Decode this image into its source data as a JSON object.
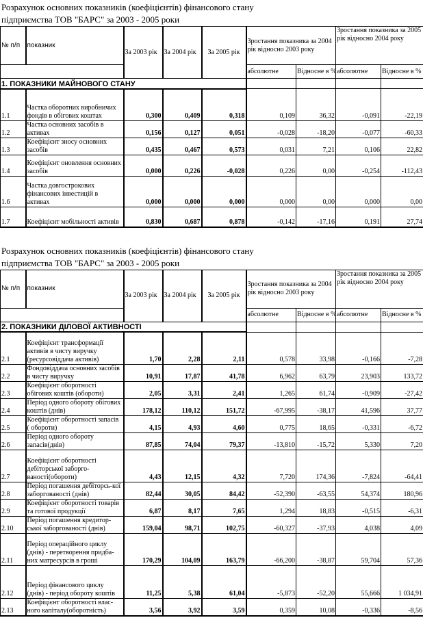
{
  "tables": [
    {
      "title_line1": "Розрахунок основних показників (коефіцієнтів) фінансового стану",
      "title_line2": "підприємства ТОВ \"БАРС\" за 2003 - 2005 роки",
      "headers": {
        "num": "№ п/п",
        "indicator": "показник",
        "y2003": "За 2003 рік",
        "y2004": "За 2004 рік",
        "y2005": "За 2005 рік",
        "growth1": "Зростання показника за 2004 рік відносно 2003 року",
        "growth2": "Зростання показника за 2005 рік відносно 2004 року",
        "abs1": "абсолютне",
        "rel1": "Відносне в %",
        "abs2": "абсолютне",
        "rel2": "Відносне в %"
      },
      "section": "1. ПОКАЗНИКИ МАЙНОВОГО СТАНУ",
      "rows": [
        {
          "num": "1.1",
          "name": "Частка оборотних виробничих фондів в обігових коштах",
          "y2003": "0,300",
          "y2004": "0,409",
          "y2005": "0,318",
          "abs1": "0,109",
          "rel1": "36,32",
          "abs2": "-0,091",
          "rel2": "-22,19"
        },
        {
          "num": "1.2",
          "name": "Частка основних засобів в активах",
          "y2003": "0,156",
          "y2004": "0,127",
          "y2005": "0,051",
          "abs1": "-0,028",
          "rel1": "-18,20",
          "abs2": "-0,077",
          "rel2": "-60,33"
        },
        {
          "num": "1.3",
          "name": "Коефіцієнт зносу основних засобів",
          "y2003": "0,435",
          "y2004": "0,467",
          "y2005": "0,573",
          "abs1": "0,031",
          "rel1": "7,21",
          "abs2": "0,106",
          "rel2": "22,82"
        },
        {
          "num": "1.4",
          "name": "Коефіцієнт оновлення основних засобів",
          "y2003": "0,000",
          "y2004": "0,226",
          "y2005": "-0,028",
          "abs1": "0,226",
          "rel1": "0,00",
          "abs2": "-0,254",
          "rel2": "-112,43"
        },
        {
          "num": "1.6",
          "name": "Частка довгострокових фінансових інвестицій в активах",
          "y2003": "0,000",
          "y2004": "0,000",
          "y2005": "0,000",
          "abs1": "0,000",
          "rel1": "0,00",
          "abs2": "0,000",
          "rel2": "0,00"
        },
        {
          "num": "1.7",
          "name": "Коефіцієнт мобільності активів",
          "y2003": "0,830",
          "y2004": "0,687",
          "y2005": "0,878",
          "abs1": "-0,142",
          "rel1": "-17,16",
          "abs2": "0,191",
          "rel2": "27,74"
        }
      ]
    },
    {
      "title_line1": "Розрахунок основних показників (коефіцієнтів) фінансового стану",
      "title_line2": "підприємства ТОВ \"БАРС\" за 2003 - 2005 роки",
      "headers": {
        "num": "№ п/п",
        "indicator": "показник",
        "y2003": "За 2003 рік",
        "y2004": "За 2004 рік",
        "y2005": "За 2005 рік",
        "growth1": "Зростання показника за 2004 рік відносно 2003 року",
        "growth2": "Зростання показника за 2005 рік відносно 2004 року",
        "abs1": "абсолютне",
        "rel1": "Відносне в %",
        "abs2": "абсолютне",
        "rel2": "Відносне в %"
      },
      "section": "2. ПОКАЗНИКИ ДІЛОВОЇ АКТИВНОСТІ",
      "rows": [
        {
          "num": "2.1",
          "name": "Коефіцієнт трансформації активів в чисту виручку (ресурсовіддача активів)",
          "y2003": "1,70",
          "y2004": "2,28",
          "y2005": "2,11",
          "abs1": "0,578",
          "rel1": "33,98",
          "abs2": "-0,166",
          "rel2": "-7,28"
        },
        {
          "num": "2.2",
          "name": "Фондовіддача основних засобів в чисту виручку",
          "y2003": "10,91",
          "y2004": "17,87",
          "y2005": "41,78",
          "abs1": "6,962",
          "rel1": "63,79",
          "abs2": "23,903",
          "rel2": "133,72"
        },
        {
          "num": "2.3",
          "name": "Коефіцієнт оборотності обігових коштів (обороти)",
          "y2003": "2,05",
          "y2004": "3,31",
          "y2005": "2,41",
          "abs1": "1,265",
          "rel1": "61,74",
          "abs2": "-0,909",
          "rel2": "-27,42"
        },
        {
          "num": "2.4",
          "name": "Період одного обороту обігових коштів (днів)",
          "y2003": "178,12",
          "y2004": "110,12",
          "y2005": "151,72",
          "abs1": "-67,995",
          "rel1": "-38,17",
          "abs2": "41,596",
          "rel2": "37,77"
        },
        {
          "num": "2.5",
          "name": "Коефіцієнт оборотності запасів ( обороти)",
          "y2003": "4,15",
          "y2004": "4,93",
          "y2005": "4,60",
          "abs1": "0,775",
          "rel1": "18,65",
          "abs2": "-0,331",
          "rel2": "-6,72"
        },
        {
          "num": "2.6",
          "name": "Період одного обороту запасів(днів)",
          "y2003": "87,85",
          "y2004": "74,04",
          "y2005": "79,37",
          "abs1": "-13,810",
          "rel1": "-15,72",
          "abs2": "5,330",
          "rel2": "7,20"
        },
        {
          "num": "2.7",
          "name": "Коефіцієнт оборотності дебіторської заборго-ваності(обороти)",
          "y2003": "4,43",
          "y2004": "12,15",
          "y2005": "4,32",
          "abs1": "7,720",
          "rel1": "174,36",
          "abs2": "-7,824",
          "rel2": "-64,41"
        },
        {
          "num": "2.8",
          "name": "Період погашення дебіторсь-кої заборгованості (днів)",
          "y2003": "82,44",
          "y2004": "30,05",
          "y2005": "84,42",
          "abs1": "-52,390",
          "rel1": "-63,55",
          "abs2": "54,374",
          "rel2": "180,96"
        },
        {
          "num": "2.9",
          "name": "Коефіцієнт оборотності товарів та готової продукції",
          "y2003": "6,87",
          "y2004": "8,17",
          "y2005": "7,65",
          "abs1": "1,294",
          "rel1": "18,83",
          "abs2": "-0,515",
          "rel2": "-6,31"
        },
        {
          "num": "2.10",
          "name": "Період погашення кредитор-ської заборгованості (днів)",
          "y2003": "159,04",
          "y2004": "98,71",
          "y2005": "102,75",
          "abs1": "-60,327",
          "rel1": "-37,93",
          "abs2": "4,038",
          "rel2": "4,09"
        },
        {
          "num": "2.11",
          "name": "Період операційного циклу (днів) - перетворення придба-них матресурсів в гроші",
          "y2003": "170,29",
          "y2004": "104,09",
          "y2005": "163,79",
          "abs1": "-66,200",
          "rel1": "-38,87",
          "abs2": "59,704",
          "rel2": "57,36"
        },
        {
          "num": "2.12",
          "name": "Період фінансового циклу (днів) - період обороту коштів",
          "y2003": "11,25",
          "y2004": "5,38",
          "y2005": "61,04",
          "abs1": "-5,873",
          "rel1": "-52,20",
          "abs2": "55,666",
          "rel2": "1 034,91"
        },
        {
          "num": "2.13",
          "name": "Коефіцієнт оборотності влас-ного капіталу(оборотність)",
          "y2003": "3,56",
          "y2004": "3,92",
          "y2005": "3,59",
          "abs1": "0,359",
          "rel1": "10,08",
          "abs2": "-0,336",
          "rel2": "-8,56"
        }
      ]
    }
  ]
}
